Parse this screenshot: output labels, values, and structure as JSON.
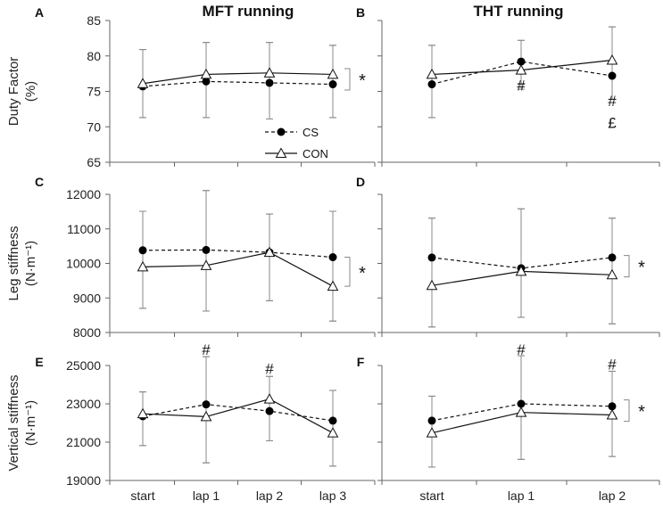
{
  "titles": {
    "left": "MFT running",
    "right": "THT running"
  },
  "legend": {
    "cs": "CS",
    "con": "CON"
  },
  "chart_data": [
    {
      "panel": "A",
      "type": "line",
      "title": "MFT running",
      "ylabel_lines": [
        "Duty Factor",
        "(%)"
      ],
      "ylim": [
        65,
        85
      ],
      "yticks": [
        "65",
        "70",
        "75",
        "80",
        "85"
      ],
      "categories": [
        "start",
        "lap 1",
        "lap 2",
        "lap 3"
      ],
      "series": [
        {
          "name": "CS",
          "style": "dashed-filled-circle",
          "values": [
            75.7,
            76.4,
            76.2,
            76.0
          ],
          "err_low": [
            71.3,
            71.3,
            71.1,
            71.3
          ],
          "err_high": [
            80.9,
            81.9,
            81.9,
            81.5
          ]
        },
        {
          "name": "CON",
          "style": "solid-open-triangle",
          "values": [
            76.1,
            77.4,
            77.6,
            77.4
          ],
          "err_low": [
            71.3,
            71.3,
            71.1,
            71.3
          ],
          "err_high": [
            80.9,
            81.9,
            81.9,
            81.5
          ]
        }
      ],
      "annotations": [],
      "significance": "*",
      "show_xticks": false,
      "legend": true
    },
    {
      "panel": "B",
      "type": "line",
      "title": "THT running",
      "ylabel_lines": [],
      "ylim": [
        65,
        85
      ],
      "yticks": [
        "65",
        "70",
        "75",
        "80",
        "85"
      ],
      "categories": [
        "start",
        "lap 1",
        "lap 2"
      ],
      "series": [
        {
          "name": "CS",
          "style": "dashed-filled-circle",
          "values": [
            76.0,
            79.2,
            77.2
          ],
          "err_low": [
            71.3,
            76.0,
            73.9
          ],
          "err_high": [
            81.5,
            82.2,
            84.1
          ]
        },
        {
          "name": "CON",
          "style": "solid-open-triangle",
          "values": [
            77.4,
            78.0,
            79.4
          ],
          "err_low": [
            71.3,
            75.3,
            73.9
          ],
          "err_high": [
            81.5,
            82.2,
            84.1
          ]
        }
      ],
      "annotations": [
        {
          "index": 1,
          "text": "#",
          "pos": "below",
          "value": 75.9
        },
        {
          "index": 2,
          "text": "#",
          "pos": "below",
          "value": 73.7
        },
        {
          "index": 2,
          "text": "£",
          "pos": "below",
          "value": 70.6
        }
      ],
      "significance": "",
      "show_xticks": false,
      "legend": false
    },
    {
      "panel": "C",
      "type": "line",
      "ylabel_lines": [
        "Leg stiffness",
        "(N·m⁻¹)"
      ],
      "ylim": [
        8000,
        12000
      ],
      "yticks": [
        "8000",
        "9000",
        "10000",
        "11000",
        "12000"
      ],
      "categories": [
        "start",
        "lap 1",
        "lap 2",
        "lap 3"
      ],
      "series": [
        {
          "name": "CS",
          "style": "dashed-filled-circle",
          "values": [
            10380,
            10390,
            10320,
            10180
          ],
          "err_low": [
            8700,
            8620,
            8920,
            8330
          ],
          "err_high": [
            11510,
            12110,
            11430,
            11510
          ]
        },
        {
          "name": "CON",
          "style": "solid-open-triangle",
          "values": [
            9900,
            9940,
            10320,
            9340
          ],
          "err_low": [
            8700,
            8620,
            8920,
            8330
          ],
          "err_high": [
            11510,
            12110,
            11430,
            11510
          ]
        }
      ],
      "annotations": [],
      "significance": "*",
      "show_xticks": false,
      "legend": false
    },
    {
      "panel": "D",
      "type": "line",
      "ylabel_lines": [],
      "ylim": [
        8000,
        12000
      ],
      "yticks": [
        "8000",
        "9000",
        "10000",
        "11000",
        "12000"
      ],
      "categories": [
        "start",
        "lap 1",
        "lap 2"
      ],
      "series": [
        {
          "name": "CS",
          "style": "dashed-filled-circle",
          "values": [
            10170,
            9860,
            10170
          ],
          "err_low": [
            8160,
            8440,
            8250
          ],
          "err_high": [
            11310,
            11580,
            11310
          ]
        },
        {
          "name": "CON",
          "style": "solid-open-triangle",
          "values": [
            9360,
            9770,
            9670
          ],
          "err_low": [
            8160,
            8440,
            8250
          ],
          "err_high": [
            11310,
            11580,
            11310
          ]
        }
      ],
      "annotations": [],
      "significance": "*",
      "show_xticks": false,
      "legend": false
    },
    {
      "panel": "E",
      "type": "line",
      "ylabel_lines": [
        "Vertical stiffness",
        "(N·m⁻¹)"
      ],
      "ylim": [
        19000,
        25000
      ],
      "yticks": [
        "19000",
        "21000",
        "23000",
        "25000"
      ],
      "categories": [
        "start",
        "lap 1",
        "lap 2",
        "lap 3"
      ],
      "series": [
        {
          "name": "CS",
          "style": "dashed-filled-circle",
          "values": [
            22350,
            22970,
            22620,
            22120
          ],
          "err_low": [
            20820,
            19920,
            21070,
            19750
          ],
          "err_high": [
            23620,
            25460,
            24430,
            23700
          ]
        },
        {
          "name": "CON",
          "style": "solid-open-triangle",
          "values": [
            22480,
            22330,
            23250,
            21480
          ],
          "err_low": [
            20820,
            19920,
            21070,
            19750
          ],
          "err_high": [
            23620,
            25460,
            24430,
            23700
          ]
        }
      ],
      "annotations": [
        {
          "index": 1,
          "text": "#",
          "pos": "above",
          "value": 25550
        },
        {
          "index": 2,
          "text": "#",
          "pos": "above",
          "value": 24550
        }
      ],
      "significance": "",
      "show_xticks": true,
      "legend": false
    },
    {
      "panel": "F",
      "type": "line",
      "ylabel_lines": [],
      "ylim": [
        19000,
        25000
      ],
      "yticks": [
        "19000",
        "21000",
        "23000",
        "25000"
      ],
      "categories": [
        "start",
        "lap 1",
        "lap 2"
      ],
      "series": [
        {
          "name": "CS",
          "style": "dashed-filled-circle",
          "values": [
            22120,
            23000,
            22870
          ],
          "err_low": [
            19700,
            20100,
            20250
          ],
          "err_high": [
            23400,
            25510,
            24700
          ]
        },
        {
          "name": "CON",
          "style": "solid-open-triangle",
          "values": [
            21480,
            22550,
            22420
          ],
          "err_low": [
            19700,
            20100,
            20250
          ],
          "err_high": [
            23400,
            25510,
            24700
          ]
        }
      ],
      "annotations": [
        {
          "index": 1,
          "text": "#",
          "pos": "above",
          "value": 25560
        },
        {
          "index": 2,
          "text": "#",
          "pos": "above",
          "value": 24800
        }
      ],
      "significance": "*",
      "show_xticks": true,
      "legend": false
    }
  ]
}
